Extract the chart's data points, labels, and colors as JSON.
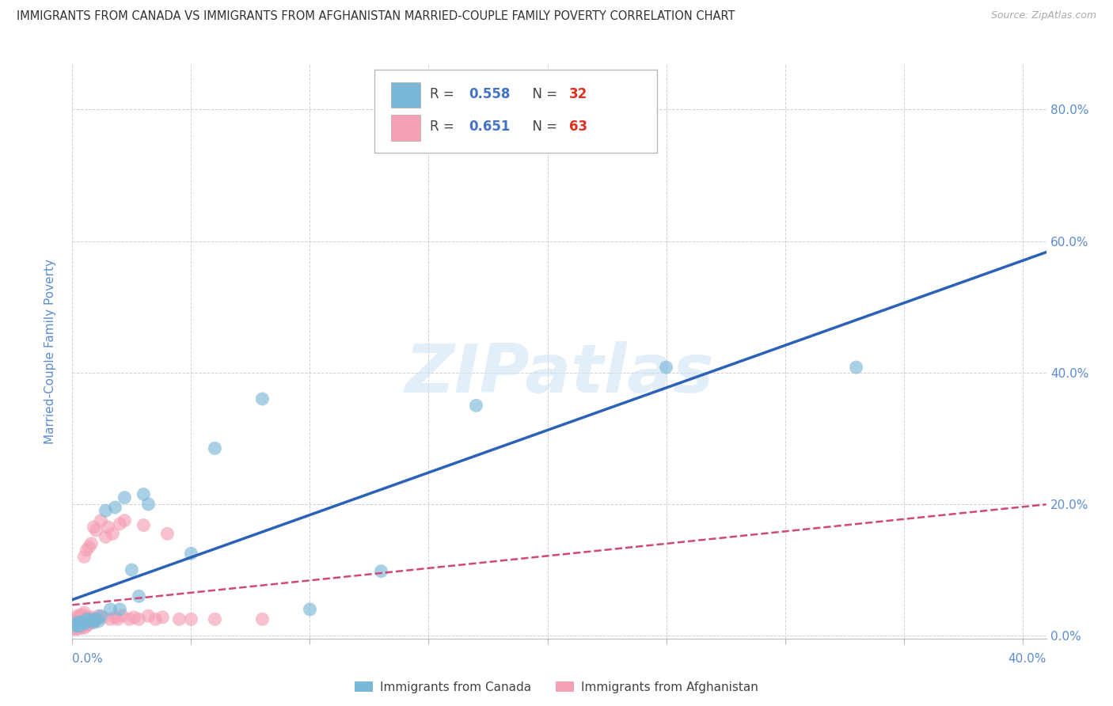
{
  "title": "IMMIGRANTS FROM CANADA VS IMMIGRANTS FROM AFGHANISTAN MARRIED-COUPLE FAMILY POVERTY CORRELATION CHART",
  "source": "Source: ZipAtlas.com",
  "ylabel": "Married-Couple Family Poverty",
  "xlim": [
    0.0,
    0.41
  ],
  "ylim": [
    -0.005,
    0.87
  ],
  "legend_canada_R": "0.558",
  "legend_canada_N": "32",
  "legend_afghanistan_R": "0.651",
  "legend_afghanistan_N": "63",
  "canada_color": "#7bb8d8",
  "afghanistan_color": "#f4a0b5",
  "trendline_canada_color": "#2b62b8",
  "trendline_afghanistan_color": "#d04878",
  "canada_x": [
    0.001,
    0.002,
    0.002,
    0.003,
    0.003,
    0.004,
    0.005,
    0.005,
    0.006,
    0.007,
    0.008,
    0.009,
    0.01,
    0.011,
    0.012,
    0.014,
    0.016,
    0.018,
    0.02,
    0.022,
    0.025,
    0.028,
    0.03,
    0.032,
    0.05,
    0.06,
    0.08,
    0.1,
    0.13,
    0.17,
    0.25,
    0.33
  ],
  "canada_y": [
    0.015,
    0.015,
    0.02,
    0.015,
    0.02,
    0.02,
    0.02,
    0.018,
    0.025,
    0.022,
    0.025,
    0.02,
    0.025,
    0.022,
    0.03,
    0.19,
    0.04,
    0.195,
    0.04,
    0.21,
    0.1,
    0.06,
    0.215,
    0.2,
    0.125,
    0.285,
    0.36,
    0.04,
    0.098,
    0.35,
    0.408,
    0.408
  ],
  "afghanistan_x": [
    0.001,
    0.001,
    0.001,
    0.001,
    0.002,
    0.002,
    0.002,
    0.002,
    0.002,
    0.003,
    0.003,
    0.003,
    0.003,
    0.003,
    0.004,
    0.004,
    0.004,
    0.004,
    0.004,
    0.005,
    0.005,
    0.005,
    0.005,
    0.005,
    0.005,
    0.006,
    0.006,
    0.006,
    0.006,
    0.007,
    0.007,
    0.007,
    0.008,
    0.008,
    0.008,
    0.009,
    0.009,
    0.01,
    0.01,
    0.011,
    0.012,
    0.013,
    0.014,
    0.015,
    0.016,
    0.017,
    0.018,
    0.019,
    0.02,
    0.021,
    0.022,
    0.024,
    0.026,
    0.028,
    0.03,
    0.032,
    0.035,
    0.038,
    0.04,
    0.045,
    0.05,
    0.06,
    0.08
  ],
  "afghanistan_y": [
    0.01,
    0.015,
    0.012,
    0.02,
    0.01,
    0.015,
    0.018,
    0.025,
    0.03,
    0.012,
    0.015,
    0.018,
    0.025,
    0.03,
    0.012,
    0.015,
    0.02,
    0.025,
    0.032,
    0.012,
    0.018,
    0.022,
    0.028,
    0.035,
    0.12,
    0.015,
    0.022,
    0.028,
    0.13,
    0.018,
    0.025,
    0.135,
    0.02,
    0.028,
    0.14,
    0.022,
    0.165,
    0.025,
    0.16,
    0.03,
    0.175,
    0.028,
    0.15,
    0.165,
    0.025,
    0.155,
    0.028,
    0.025,
    0.17,
    0.03,
    0.175,
    0.025,
    0.028,
    0.025,
    0.168,
    0.03,
    0.025,
    0.028,
    0.155,
    0.025,
    0.025,
    0.025,
    0.025
  ],
  "watermark_text": "ZIPatlas",
  "background_color": "#ffffff",
  "grid_color": "#cccccc",
  "tick_color": "#5b8cd0",
  "label_color": "#5b8cd0",
  "title_color": "#333333",
  "source_color": "#aaaaaa"
}
